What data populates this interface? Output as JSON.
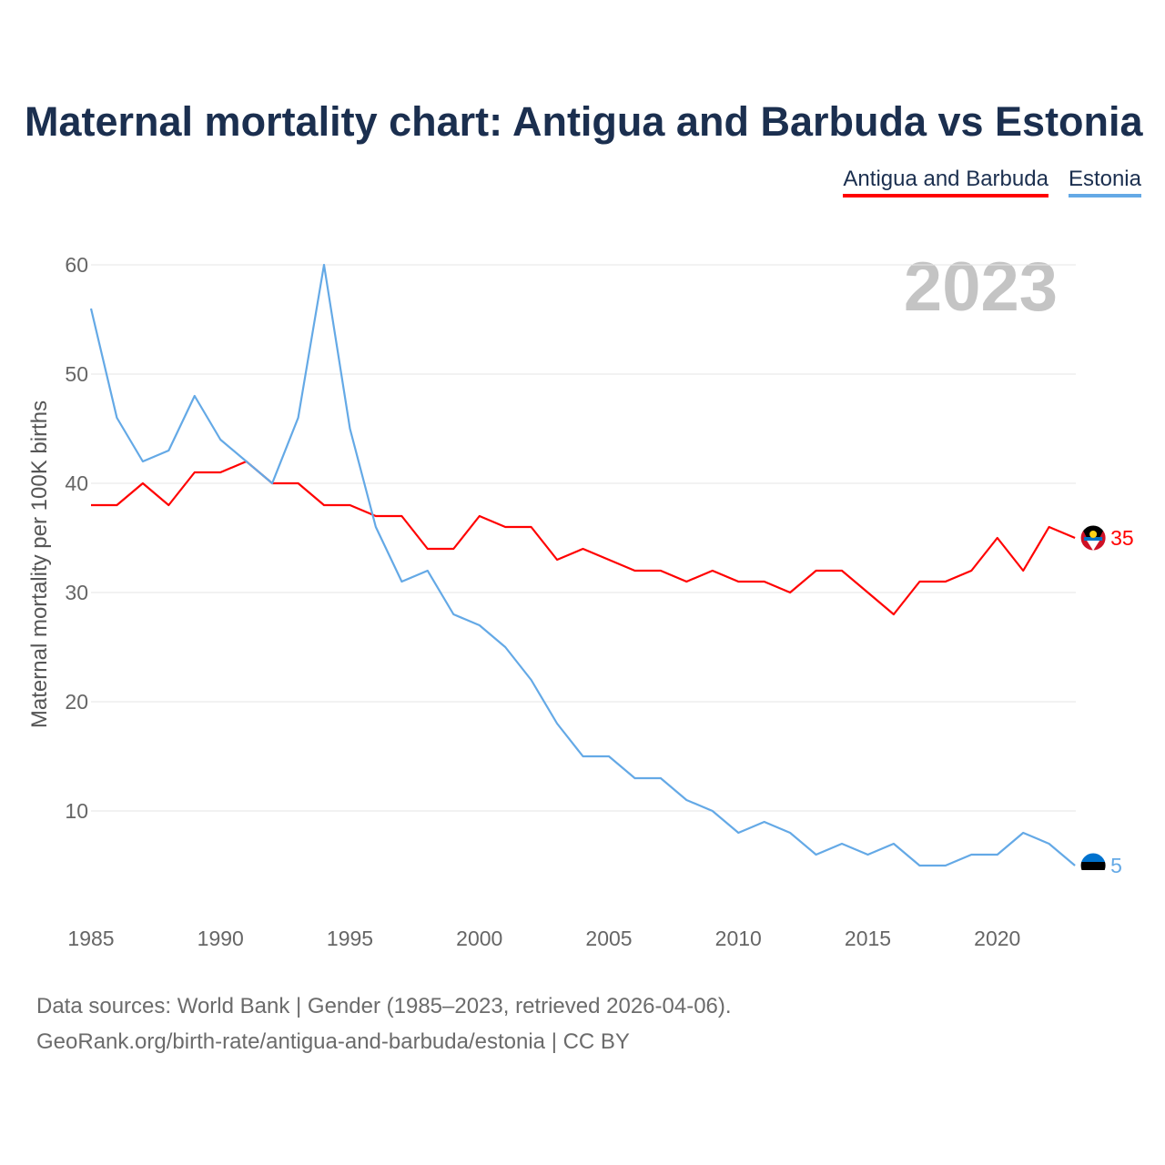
{
  "title": "Maternal mortality chart: Antigua and Barbuda vs Estonia",
  "legend": {
    "items": [
      {
        "label": "Antigua and Barbuda",
        "color": "#ff0000"
      },
      {
        "label": "Estonia",
        "color": "#64a9e6"
      }
    ]
  },
  "year_watermark": "2023",
  "source": {
    "line1": "Data sources: World Bank | Gender (1985–2023, retrieved 2026-04-06).",
    "line2": "GeoRank.org/birth-rate/antigua-and-barbuda/estonia | CC BY"
  },
  "chart_data": {
    "type": "line",
    "title": "Maternal mortality chart: Antigua and Barbuda vs Estonia",
    "xlabel": "",
    "ylabel": "Maternal mortality per 100K births",
    "xlim": [
      1985,
      2023
    ],
    "ylim": [
      0,
      60
    ],
    "grid": true,
    "x_ticks": [
      1985,
      1990,
      1995,
      2000,
      2005,
      2010,
      2015,
      2020
    ],
    "y_ticks": [
      10,
      20,
      30,
      40,
      50,
      60
    ],
    "x": [
      1985,
      1986,
      1987,
      1988,
      1989,
      1990,
      1991,
      1992,
      1993,
      1994,
      1995,
      1996,
      1997,
      1998,
      1999,
      2000,
      2001,
      2002,
      2003,
      2004,
      2005,
      2006,
      2007,
      2008,
      2009,
      2010,
      2011,
      2012,
      2013,
      2014,
      2015,
      2016,
      2017,
      2018,
      2019,
      2020,
      2021,
      2022,
      2023
    ],
    "series": [
      {
        "name": "Antigua and Barbuda",
        "color": "#ff0000",
        "end_label": "35",
        "flag_icon": "antigua-and-barbuda-flag-icon",
        "values": [
          38,
          38,
          40,
          38,
          41,
          41,
          42,
          40,
          40,
          38,
          38,
          37,
          37,
          34,
          34,
          37,
          36,
          36,
          33,
          34,
          33,
          32,
          32,
          31,
          32,
          31,
          31,
          30,
          32,
          32,
          30,
          28,
          31,
          31,
          32,
          35,
          32,
          36,
          35
        ]
      },
      {
        "name": "Estonia",
        "color": "#64a9e6",
        "end_label": "5",
        "flag_icon": "estonia-flag-icon",
        "values": [
          56,
          46,
          42,
          43,
          48,
          44,
          42,
          40,
          46,
          60,
          45,
          36,
          31,
          32,
          28,
          27,
          25,
          22,
          18,
          15,
          15,
          13,
          13,
          11,
          10,
          8,
          9,
          8,
          6,
          7,
          6,
          7,
          5,
          5,
          6,
          6,
          8,
          7,
          5
        ]
      }
    ]
  }
}
